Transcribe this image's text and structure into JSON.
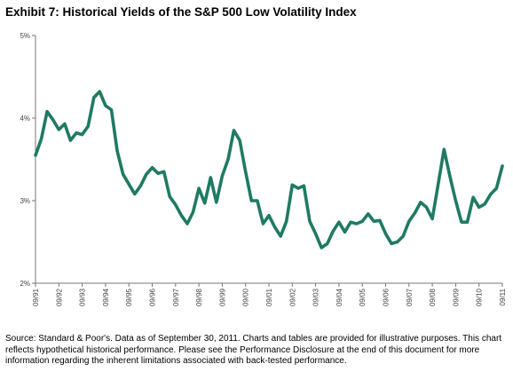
{
  "chart_data": {
    "type": "line",
    "title": "Exhibit 7: Historical Yields of the S&P 500 Low Volatility Index",
    "xlabel": "",
    "ylabel": "",
    "y_ticks": [
      "5%",
      "4%",
      "3%",
      "2%"
    ],
    "ylim": [
      2,
      5
    ],
    "x_ticks": [
      "09/91",
      "09/92",
      "09/93",
      "09/94",
      "09/95",
      "09/96",
      "09/97",
      "09/98",
      "09/99",
      "09/00",
      "09/01",
      "09/02",
      "09/03",
      "09/04",
      "09/05",
      "09/06",
      "09/07",
      "09/08",
      "09/09",
      "09/10",
      "09/11"
    ],
    "xlim": [
      1991.75,
      2011.75
    ],
    "grid": false,
    "line_color": "#1f7a63",
    "series": [
      {
        "x": [
          1991.75,
          1992.0,
          1992.25,
          1992.5,
          1992.75,
          1993.0,
          1993.25,
          1993.5,
          1993.75,
          1994.0,
          1994.25,
          1994.5,
          1994.75,
          1995.0,
          1995.25,
          1995.5,
          1995.75,
          1996.0,
          1996.25,
          1996.5,
          1996.75,
          1997.0,
          1997.25,
          1997.5,
          1997.75,
          1998.0,
          1998.25,
          1998.5,
          1998.75,
          1999.0,
          1999.25,
          1999.5,
          1999.75,
          2000.0,
          2000.25,
          2000.5,
          2000.75,
          2001.0,
          2001.25,
          2001.5,
          2001.75,
          2002.0,
          2002.25,
          2002.5,
          2002.75,
          2003.0,
          2003.25,
          2003.5,
          2003.75,
          2004.0,
          2004.25,
          2004.5,
          2004.75,
          2005.0,
          2005.25,
          2005.5,
          2005.75,
          2006.0,
          2006.25,
          2006.5,
          2006.75,
          2007.0,
          2007.25,
          2007.5,
          2007.75,
          2008.0,
          2008.25,
          2008.5,
          2008.75,
          2009.0,
          2009.25,
          2009.5,
          2009.75,
          2010.0,
          2010.25,
          2010.5,
          2010.75,
          2011.0,
          2011.25,
          2011.5,
          2011.75
        ],
        "values": [
          3.55,
          3.75,
          4.08,
          3.98,
          3.86,
          3.93,
          3.73,
          3.82,
          3.8,
          3.9,
          4.25,
          4.32,
          4.15,
          4.1,
          3.6,
          3.32,
          3.2,
          3.08,
          3.18,
          3.32,
          3.4,
          3.33,
          3.35,
          3.05,
          2.95,
          2.82,
          2.72,
          2.86,
          3.15,
          2.97,
          3.28,
          2.98,
          3.3,
          3.5,
          3.85,
          3.73,
          3.35,
          3.0,
          3.0,
          2.72,
          2.82,
          2.68,
          2.57,
          2.75,
          3.19,
          3.15,
          3.18,
          2.75,
          2.6,
          2.43,
          2.48,
          2.63,
          2.74,
          2.62,
          2.74,
          2.72,
          2.75,
          2.84,
          2.75,
          2.76,
          2.6,
          2.48,
          2.5,
          2.57,
          2.75,
          2.85,
          2.98,
          2.92,
          2.78,
          3.2,
          3.62,
          3.3,
          3.0,
          2.74,
          2.74,
          3.04,
          2.92,
          2.96,
          3.08,
          3.15,
          3.42
        ]
      }
    ]
  },
  "footnote": "Source: Standard & Poor's. Data as of September 30, 2011. Charts and tables are provided for illustrative purposes. This chart reflects hypothetical historical performance. Please see the Performance Disclosure at the end of this document for more information regarding the inherent limitations associated with back-tested performance."
}
